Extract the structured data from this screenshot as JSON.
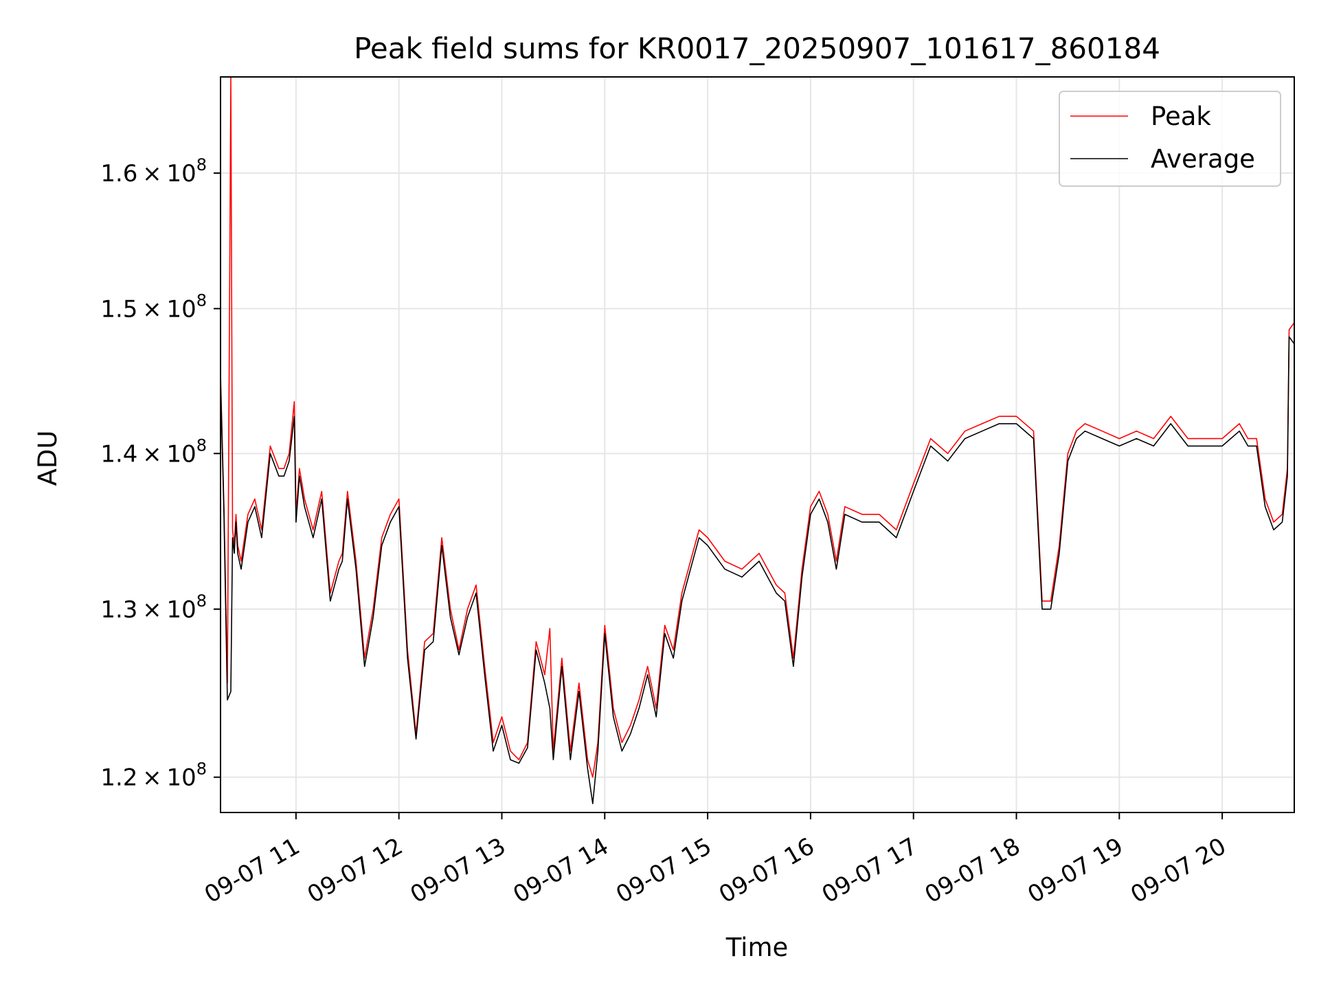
{
  "chart_data": {
    "type": "line",
    "title": "Peak field sums for KR0017_20250907_101617_860184",
    "xlabel": "Time",
    "ylabel": "ADU",
    "xlim": [
      "2025-09-07T10:16",
      "2025-09-07T20:42"
    ],
    "ylim": [
      118000000,
      167500000
    ],
    "yscale": "log",
    "grid": true,
    "legend": "top-right",
    "x_ticks": [
      {
        "value": "2025-09-07T11:00",
        "label": "09-07 11"
      },
      {
        "value": "2025-09-07T12:00",
        "label": "09-07 12"
      },
      {
        "value": "2025-09-07T13:00",
        "label": "09-07 13"
      },
      {
        "value": "2025-09-07T14:00",
        "label": "09-07 14"
      },
      {
        "value": "2025-09-07T15:00",
        "label": "09-07 15"
      },
      {
        "value": "2025-09-07T16:00",
        "label": "09-07 16"
      },
      {
        "value": "2025-09-07T17:00",
        "label": "09-07 17"
      },
      {
        "value": "2025-09-07T18:00",
        "label": "09-07 18"
      },
      {
        "value": "2025-09-07T19:00",
        "label": "09-07 19"
      },
      {
        "value": "2025-09-07T20:00",
        "label": "09-07 20"
      }
    ],
    "y_ticks": [
      {
        "value": 120000000,
        "mantissa": "1.2",
        "exp": "8"
      },
      {
        "value": 130000000,
        "mantissa": "1.3",
        "exp": "8"
      },
      {
        "value": 140000000,
        "mantissa": "1.4",
        "exp": "8"
      },
      {
        "value": 150000000,
        "mantissa": "1.5",
        "exp": "8"
      },
      {
        "value": 160000000,
        "mantissa": "1.6",
        "exp": "8"
      }
    ],
    "series": [
      {
        "name": "Peak",
        "color": "#ff0000",
        "x": [
          "2025-09-07T10:16",
          "2025-09-07T10:18",
          "2025-09-07T10:20",
          "2025-09-07T10:22",
          "2025-09-07T10:23",
          "2025-09-07T10:24",
          "2025-09-07T10:25",
          "2025-09-07T10:26",
          "2025-09-07T10:28",
          "2025-09-07T10:32",
          "2025-09-07T10:36",
          "2025-09-07T10:40",
          "2025-09-07T10:45",
          "2025-09-07T10:50",
          "2025-09-07T10:53",
          "2025-09-07T10:56",
          "2025-09-07T10:59",
          "2025-09-07T11:00",
          "2025-09-07T11:02",
          "2025-09-07T11:05",
          "2025-09-07T11:10",
          "2025-09-07T11:15",
          "2025-09-07T11:20",
          "2025-09-07T11:25",
          "2025-09-07T11:27",
          "2025-09-07T11:30",
          "2025-09-07T11:35",
          "2025-09-07T11:40",
          "2025-09-07T11:45",
          "2025-09-07T11:50",
          "2025-09-07T11:55",
          "2025-09-07T12:00",
          "2025-09-07T12:05",
          "2025-09-07T12:10",
          "2025-09-07T12:15",
          "2025-09-07T12:20",
          "2025-09-07T12:25",
          "2025-09-07T12:30",
          "2025-09-07T12:35",
          "2025-09-07T12:40",
          "2025-09-07T12:45",
          "2025-09-07T12:50",
          "2025-09-07T12:55",
          "2025-09-07T13:00",
          "2025-09-07T13:05",
          "2025-09-07T13:10",
          "2025-09-07T13:15",
          "2025-09-07T13:20",
          "2025-09-07T13:25",
          "2025-09-07T13:28",
          "2025-09-07T13:30",
          "2025-09-07T13:35",
          "2025-09-07T13:40",
          "2025-09-07T13:45",
          "2025-09-07T13:50",
          "2025-09-07T13:53",
          "2025-09-07T13:56",
          "2025-09-07T14:00",
          "2025-09-07T14:05",
          "2025-09-07T14:10",
          "2025-09-07T14:15",
          "2025-09-07T14:20",
          "2025-09-07T14:25",
          "2025-09-07T14:30",
          "2025-09-07T14:35",
          "2025-09-07T14:40",
          "2025-09-07T14:45",
          "2025-09-07T14:50",
          "2025-09-07T14:55",
          "2025-09-07T15:00",
          "2025-09-07T15:10",
          "2025-09-07T15:20",
          "2025-09-07T15:30",
          "2025-09-07T15:40",
          "2025-09-07T15:45",
          "2025-09-07T15:50",
          "2025-09-07T15:55",
          "2025-09-07T16:00",
          "2025-09-07T16:05",
          "2025-09-07T16:10",
          "2025-09-07T16:15",
          "2025-09-07T16:20",
          "2025-09-07T16:30",
          "2025-09-07T16:40",
          "2025-09-07T16:50",
          "2025-09-07T17:00",
          "2025-09-07T17:10",
          "2025-09-07T17:20",
          "2025-09-07T17:30",
          "2025-09-07T17:40",
          "2025-09-07T17:50",
          "2025-09-07T18:00",
          "2025-09-07T18:10",
          "2025-09-07T18:15",
          "2025-09-07T18:20",
          "2025-09-07T18:25",
          "2025-09-07T18:30",
          "2025-09-07T18:35",
          "2025-09-07T18:40",
          "2025-09-07T18:50",
          "2025-09-07T19:00",
          "2025-09-07T19:10",
          "2025-09-07T19:20",
          "2025-09-07T19:30",
          "2025-09-07T19:40",
          "2025-09-07T19:50",
          "2025-09-07T20:00",
          "2025-09-07T20:10",
          "2025-09-07T20:15",
          "2025-09-07T20:20",
          "2025-09-07T20:25",
          "2025-09-07T20:30",
          "2025-09-07T20:35",
          "2025-09-07T20:38",
          "2025-09-07T20:39",
          "2025-09-07T20:42"
        ],
        "y": [
          145500000,
          136500000,
          125500000,
          167500000,
          135000000,
          134000000,
          136000000,
          134000000,
          133000000,
          136000000,
          137000000,
          135000000,
          140500000,
          139000000,
          139000000,
          140000000,
          143500000,
          136000000,
          139000000,
          137000000,
          135000000,
          137500000,
          131000000,
          133000000,
          133500000,
          137500000,
          133000000,
          127000000,
          130000000,
          134500000,
          136000000,
          137000000,
          127500000,
          122500000,
          128000000,
          128500000,
          134500000,
          130000000,
          127500000,
          130000000,
          131500000,
          126500000,
          122000000,
          123500000,
          121500000,
          121000000,
          122000000,
          128000000,
          126000000,
          128800000,
          121500000,
          127000000,
          121500000,
          125500000,
          121000000,
          120000000,
          122000000,
          129000000,
          124000000,
          122000000,
          123000000,
          124500000,
          126500000,
          124000000,
          129000000,
          127500000,
          131000000,
          133000000,
          135000000,
          134500000,
          133000000,
          132500000,
          133500000,
          131500000,
          131000000,
          127000000,
          132500000,
          136500000,
          137500000,
          136000000,
          133000000,
          136500000,
          136000000,
          136000000,
          135000000,
          138000000,
          141000000,
          140000000,
          141500000,
          142000000,
          142500000,
          142500000,
          141500000,
          130500000,
          130500000,
          134000000,
          140000000,
          141500000,
          142000000,
          141500000,
          141000000,
          141500000,
          141000000,
          142500000,
          141000000,
          141000000,
          141000000,
          142000000,
          141000000,
          141000000,
          137000000,
          135500000,
          136000000,
          139000000,
          148500000,
          149000000
        ]
      },
      {
        "name": "Average",
        "color": "#000000",
        "x": [
          "2025-09-07T10:16",
          "2025-09-07T10:18",
          "2025-09-07T10:20",
          "2025-09-07T10:22",
          "2025-09-07T10:23",
          "2025-09-07T10:24",
          "2025-09-07T10:25",
          "2025-09-07T10:26",
          "2025-09-07T10:28",
          "2025-09-07T10:32",
          "2025-09-07T10:36",
          "2025-09-07T10:40",
          "2025-09-07T10:45",
          "2025-09-07T10:50",
          "2025-09-07T10:53",
          "2025-09-07T10:56",
          "2025-09-07T10:59",
          "2025-09-07T11:00",
          "2025-09-07T11:02",
          "2025-09-07T11:05",
          "2025-09-07T11:10",
          "2025-09-07T11:15",
          "2025-09-07T11:20",
          "2025-09-07T11:25",
          "2025-09-07T11:27",
          "2025-09-07T11:30",
          "2025-09-07T11:35",
          "2025-09-07T11:40",
          "2025-09-07T11:45",
          "2025-09-07T11:50",
          "2025-09-07T11:55",
          "2025-09-07T12:00",
          "2025-09-07T12:05",
          "2025-09-07T12:10",
          "2025-09-07T12:15",
          "2025-09-07T12:20",
          "2025-09-07T12:25",
          "2025-09-07T12:30",
          "2025-09-07T12:35",
          "2025-09-07T12:40",
          "2025-09-07T12:45",
          "2025-09-07T12:50",
          "2025-09-07T12:55",
          "2025-09-07T13:00",
          "2025-09-07T13:05",
          "2025-09-07T13:10",
          "2025-09-07T13:15",
          "2025-09-07T13:20",
          "2025-09-07T13:25",
          "2025-09-07T13:28",
          "2025-09-07T13:30",
          "2025-09-07T13:35",
          "2025-09-07T13:40",
          "2025-09-07T13:45",
          "2025-09-07T13:50",
          "2025-09-07T13:53",
          "2025-09-07T13:56",
          "2025-09-07T14:00",
          "2025-09-07T14:05",
          "2025-09-07T14:10",
          "2025-09-07T14:15",
          "2025-09-07T14:20",
          "2025-09-07T14:25",
          "2025-09-07T14:30",
          "2025-09-07T14:35",
          "2025-09-07T14:40",
          "2025-09-07T14:45",
          "2025-09-07T14:50",
          "2025-09-07T14:55",
          "2025-09-07T15:00",
          "2025-09-07T15:10",
          "2025-09-07T15:20",
          "2025-09-07T15:30",
          "2025-09-07T15:40",
          "2025-09-07T15:45",
          "2025-09-07T15:50",
          "2025-09-07T15:55",
          "2025-09-07T16:00",
          "2025-09-07T16:05",
          "2025-09-07T16:10",
          "2025-09-07T16:15",
          "2025-09-07T16:20",
          "2025-09-07T16:30",
          "2025-09-07T16:40",
          "2025-09-07T16:50",
          "2025-09-07T17:00",
          "2025-09-07T17:10",
          "2025-09-07T17:20",
          "2025-09-07T17:30",
          "2025-09-07T17:40",
          "2025-09-07T17:50",
          "2025-09-07T18:00",
          "2025-09-07T18:10",
          "2025-09-07T18:15",
          "2025-09-07T18:20",
          "2025-09-07T18:25",
          "2025-09-07T18:30",
          "2025-09-07T18:35",
          "2025-09-07T18:40",
          "2025-09-07T18:50",
          "2025-09-07T19:00",
          "2025-09-07T19:10",
          "2025-09-07T19:20",
          "2025-09-07T19:30",
          "2025-09-07T19:40",
          "2025-09-07T19:50",
          "2025-09-07T20:00",
          "2025-09-07T20:10",
          "2025-09-07T20:15",
          "2025-09-07T20:20",
          "2025-09-07T20:25",
          "2025-09-07T20:30",
          "2025-09-07T20:35",
          "2025-09-07T20:38",
          "2025-09-07T20:39",
          "2025-09-07T20:42"
        ],
        "y": [
          145000000,
          136000000,
          124500000,
          125000000,
          134500000,
          133500000,
          135500000,
          133500000,
          132500000,
          135500000,
          136500000,
          134500000,
          140000000,
          138500000,
          138500000,
          139500000,
          142500000,
          135500000,
          138500000,
          136500000,
          134500000,
          137000000,
          130500000,
          132500000,
          133000000,
          137000000,
          132500000,
          126500000,
          129500000,
          134000000,
          135500000,
          136500000,
          127000000,
          122200000,
          127500000,
          128000000,
          134000000,
          129500000,
          127200000,
          129500000,
          131000000,
          126000000,
          121500000,
          123000000,
          121000000,
          120800000,
          121700000,
          127500000,
          125500000,
          124000000,
          121000000,
          126500000,
          121000000,
          125000000,
          120500000,
          118500000,
          121500000,
          128500000,
          123500000,
          121500000,
          122500000,
          124000000,
          126000000,
          123500000,
          128500000,
          127000000,
          130500000,
          132500000,
          134500000,
          134000000,
          132500000,
          132000000,
          133000000,
          131000000,
          130500000,
          126500000,
          132000000,
          136000000,
          137000000,
          135500000,
          132500000,
          136000000,
          135500000,
          135500000,
          134500000,
          137500000,
          140500000,
          139500000,
          141000000,
          141500000,
          142000000,
          142000000,
          141000000,
          130000000,
          130000000,
          133500000,
          139500000,
          141000000,
          141500000,
          141000000,
          140500000,
          141000000,
          140500000,
          142000000,
          140500000,
          140500000,
          140500000,
          141500000,
          140500000,
          140500000,
          136500000,
          135000000,
          135500000,
          138500000,
          148000000,
          147500000
        ]
      }
    ]
  }
}
